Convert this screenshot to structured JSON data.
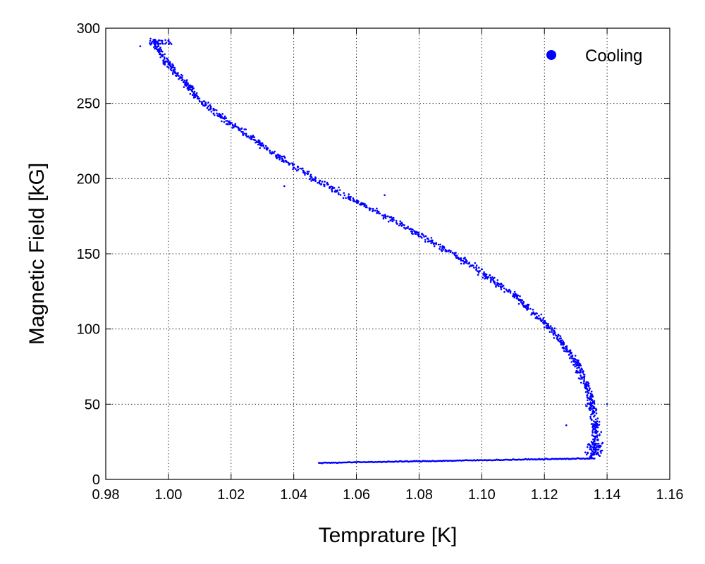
{
  "chart_data": {
    "type": "scatter",
    "title": "",
    "xlabel": "Temprature [K]",
    "ylabel": "Magnetic Field [kG]",
    "xlim": [
      0.98,
      1.16
    ],
    "ylim": [
      0,
      300
    ],
    "xticks": [
      "0.98",
      "1.00",
      "1.02",
      "1.04",
      "1.06",
      "1.08",
      "1.10",
      "1.12",
      "1.14",
      "1.16"
    ],
    "yticks": [
      "0",
      "50",
      "100",
      "150",
      "200",
      "250",
      "300"
    ],
    "grid": true,
    "legend": {
      "position": "top-right",
      "entries": [
        "Cooling"
      ]
    },
    "series": [
      {
        "name": "Cooling",
        "color": "#0000ff",
        "curve": [
          [
            0.995,
            292
          ],
          [
            0.997,
            285
          ],
          [
            1.0,
            276
          ],
          [
            1.005,
            265
          ],
          [
            1.01,
            252
          ],
          [
            1.02,
            236
          ],
          [
            1.03,
            222
          ],
          [
            1.04,
            208
          ],
          [
            1.05,
            196
          ],
          [
            1.06,
            185
          ],
          [
            1.07,
            174
          ],
          [
            1.08,
            163
          ],
          [
            1.09,
            151
          ],
          [
            1.1,
            138
          ],
          [
            1.11,
            123
          ],
          [
            1.12,
            104
          ],
          [
            1.125,
            93
          ],
          [
            1.13,
            78
          ],
          [
            1.133,
            65
          ],
          [
            1.135,
            52
          ],
          [
            1.136,
            40
          ],
          [
            1.1365,
            28
          ],
          [
            1.136,
            18
          ],
          [
            1.135,
            15
          ]
        ],
        "baseline": [
          [
            1.048,
            11
          ],
          [
            1.136,
            14
          ]
        ],
        "outliers": [
          [
            1.037,
            195
          ],
          [
            1.069,
            189
          ],
          [
            1.127,
            36
          ],
          [
            1.14,
            50
          ],
          [
            0.991,
            288
          ]
        ]
      }
    ]
  }
}
